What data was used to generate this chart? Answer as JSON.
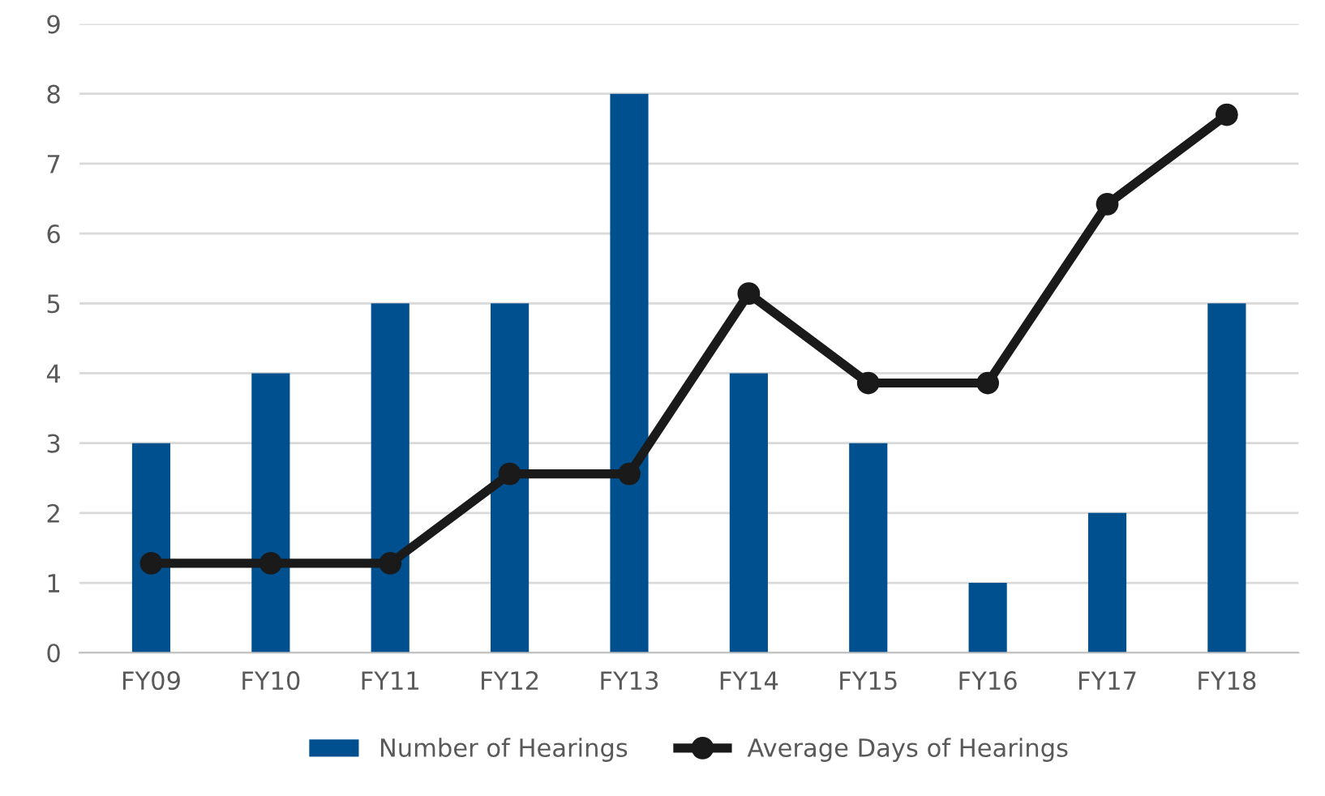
{
  "chart_data": {
    "type": "bar",
    "categories": [
      "FY09",
      "FY10",
      "FY11",
      "FY12",
      "FY13",
      "FY14",
      "FY15",
      "FY16",
      "FY17",
      "FY18"
    ],
    "series": [
      {
        "name": "Number of Hearings",
        "color": "#00508f",
        "values": [
          3,
          4,
          5,
          5,
          8,
          4,
          3,
          1,
          2,
          5
        ]
      },
      {
        "name": "Average Days of Hearings",
        "type": "line",
        "color": "#1a1a1a",
        "values": [
          1.28,
          1.28,
          1.28,
          2.56,
          2.56,
          5.14,
          3.86,
          3.86,
          6.42,
          7.7
        ]
      }
    ],
    "ylim": [
      0,
      9
    ],
    "yticks": [
      0,
      1,
      2,
      3,
      4,
      5,
      6,
      7,
      8,
      9
    ],
    "grid": "y",
    "legend": "bottom",
    "marker": "circle",
    "line_style": "solid"
  }
}
